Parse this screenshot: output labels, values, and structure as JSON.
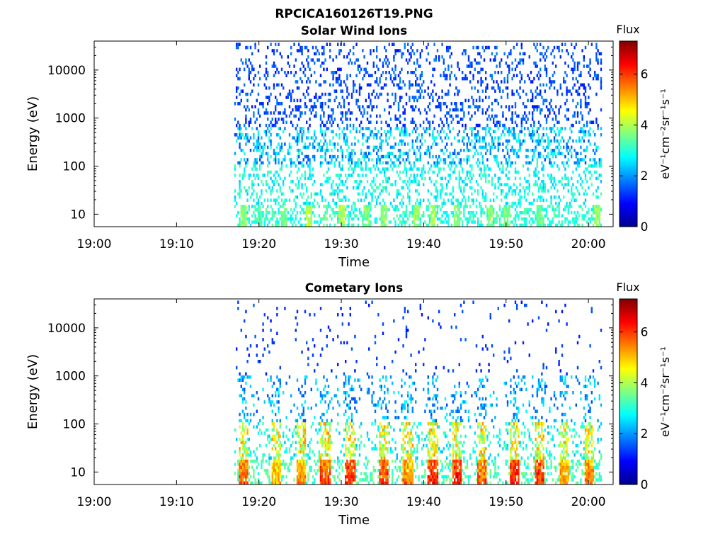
{
  "figure": {
    "title": "RPCICA160126T19.PNG"
  },
  "colorbar": {
    "label": "Flux",
    "unit_text": "eV⁻¹cm⁻²sr⁻¹s⁻¹",
    "ticks": [
      "0",
      "2",
      "4",
      "6"
    ],
    "range": [
      0,
      7.3
    ],
    "colormap": "jet"
  },
  "chart_data": [
    {
      "type": "heatmap",
      "title": "Solar Wind Ions",
      "xlabel": "Time",
      "ylabel": "Energy (eV)",
      "y_scale": "log",
      "ylim": [
        5.5,
        40000
      ],
      "x_range": [
        "19:00",
        "20:03"
      ],
      "x_ticks": [
        "19:00",
        "19:10",
        "19:20",
        "19:30",
        "19:40",
        "19:50",
        "20:00"
      ],
      "y_ticks": [
        "10",
        "100",
        "1000",
        "10000"
      ],
      "data_start": "19:17",
      "data_end": "20:01",
      "low_energy_bands": [
        {
          "time": "19:18",
          "flux": 4.2
        },
        {
          "time": "19:20",
          "flux": 3.6
        },
        {
          "time": "19:23",
          "flux": 4.0
        },
        {
          "time": "19:26",
          "flux": 4.4
        },
        {
          "time": "19:28",
          "flux": 3.8
        },
        {
          "time": "19:30",
          "flux": 4.3
        },
        {
          "time": "19:33",
          "flux": 4.0
        },
        {
          "time": "19:35",
          "flux": 4.1
        },
        {
          "time": "19:39",
          "flux": 4.2
        },
        {
          "time": "19:41",
          "flux": 4.4
        },
        {
          "time": "19:44",
          "flux": 4.0
        },
        {
          "time": "19:48",
          "flux": 4.1
        },
        {
          "time": "19:50",
          "flux": 4.0
        },
        {
          "time": "19:54",
          "flux": 3.8
        },
        {
          "time": "20:01",
          "flux": 4.1
        }
      ]
    },
    {
      "type": "heatmap",
      "title": "Cometary Ions",
      "xlabel": "Time",
      "ylabel": "Energy (eV)",
      "y_scale": "log",
      "ylim": [
        5.5,
        40000
      ],
      "x_range": [
        "19:00",
        "20:03"
      ],
      "x_ticks": [
        "19:00",
        "19:10",
        "19:20",
        "19:30",
        "19:40",
        "19:50",
        "20:00"
      ],
      "y_ticks": [
        "10",
        "100",
        "1000",
        "10000"
      ],
      "data_start": "19:17",
      "data_end": "20:01",
      "bursts": [
        {
          "time": "19:18",
          "flux": 6.5
        },
        {
          "time": "19:22",
          "flux": 5.8
        },
        {
          "time": "19:25",
          "flux": 6.0
        },
        {
          "time": "19:28",
          "flux": 6.6
        },
        {
          "time": "19:31",
          "flux": 6.8
        },
        {
          "time": "19:35",
          "flux": 6.6
        },
        {
          "time": "19:38",
          "flux": 6.2
        },
        {
          "time": "19:41",
          "flux": 6.8
        },
        {
          "time": "19:44",
          "flux": 7.0
        },
        {
          "time": "19:47",
          "flux": 6.4
        },
        {
          "time": "19:51",
          "flux": 6.9
        },
        {
          "time": "19:54",
          "flux": 6.8
        },
        {
          "time": "19:57",
          "flux": 6.0
        },
        {
          "time": "20:00",
          "flux": 6.2
        }
      ]
    }
  ]
}
